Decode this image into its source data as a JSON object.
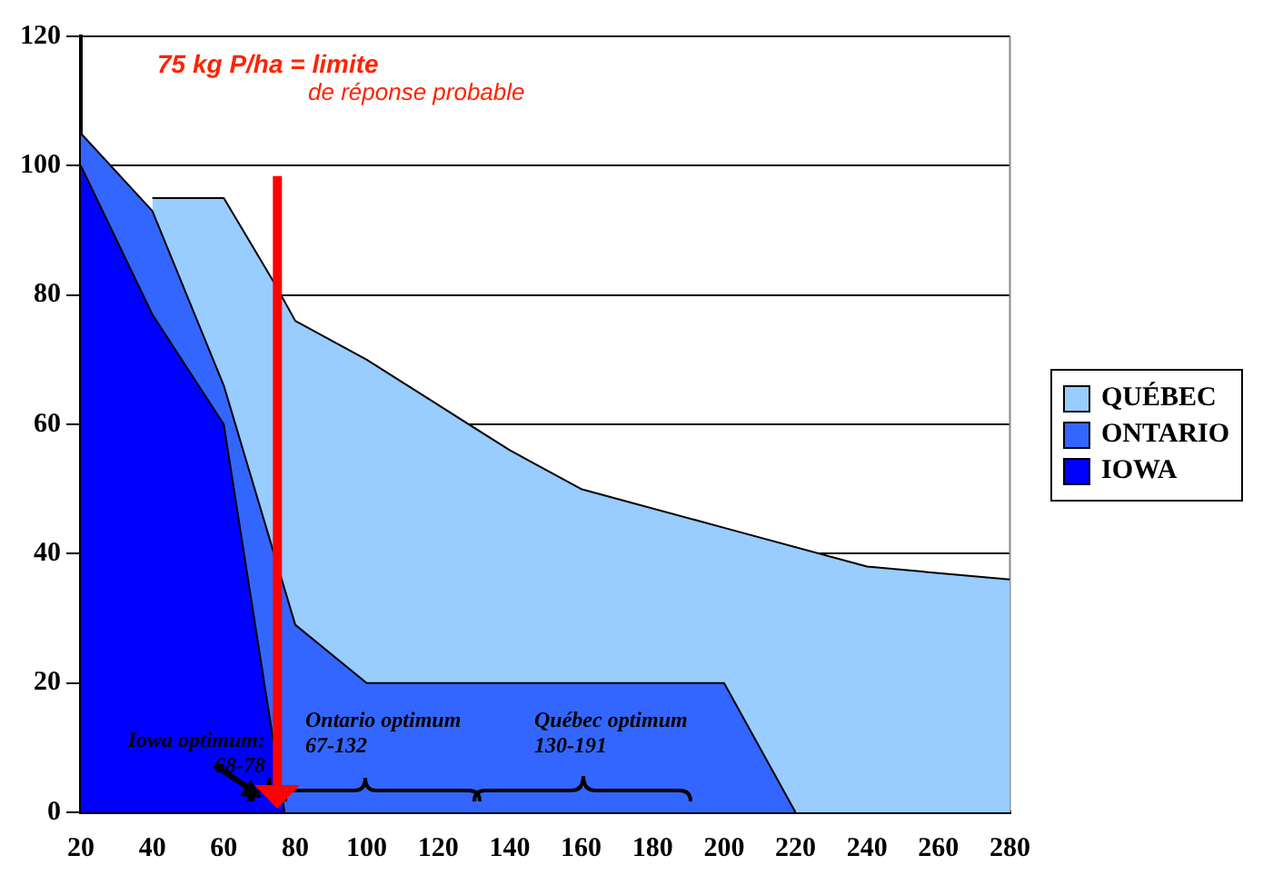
{
  "chart_data": {
    "type": "area",
    "series": [
      {
        "name": "QUÉBEC",
        "color": "#99ccff",
        "x": [
          40,
          60,
          74,
          80,
          100,
          120,
          140,
          160,
          200,
          240,
          280
        ],
        "values": [
          95,
          95,
          82,
          76,
          70,
          63,
          56,
          50,
          44,
          38,
          36
        ]
      },
      {
        "name": "ONTARIO",
        "color": "#3366ff",
        "x": [
          20,
          40,
          60,
          80,
          100,
          200,
          220
        ],
        "values": [
          105,
          93,
          66,
          29,
          20,
          20,
          0
        ]
      },
      {
        "name": "IOWA",
        "color": "#0000ff",
        "x": [
          20,
          40,
          60,
          77
        ],
        "values": [
          100,
          77,
          60,
          0
        ]
      }
    ],
    "xlim": [
      20,
      280
    ],
    "xticks": [
      20,
      40,
      60,
      80,
      100,
      120,
      140,
      160,
      180,
      200,
      220,
      240,
      260,
      280
    ],
    "ylim": [
      0,
      120
    ],
    "yticks": [
      0,
      20,
      40,
      60,
      80,
      100,
      120
    ],
    "grid": "y",
    "legend": "right",
    "ref_lines": [
      {
        "axis": "x",
        "value": 75,
        "color": "#ff0000"
      }
    ],
    "annotations": [
      "75 kg P/ha = limite",
      "de réponse probable",
      "Iowa optimum:\n68-78",
      "Ontario optimum\n67-132",
      "Québec optimum\n130-191"
    ]
  }
}
